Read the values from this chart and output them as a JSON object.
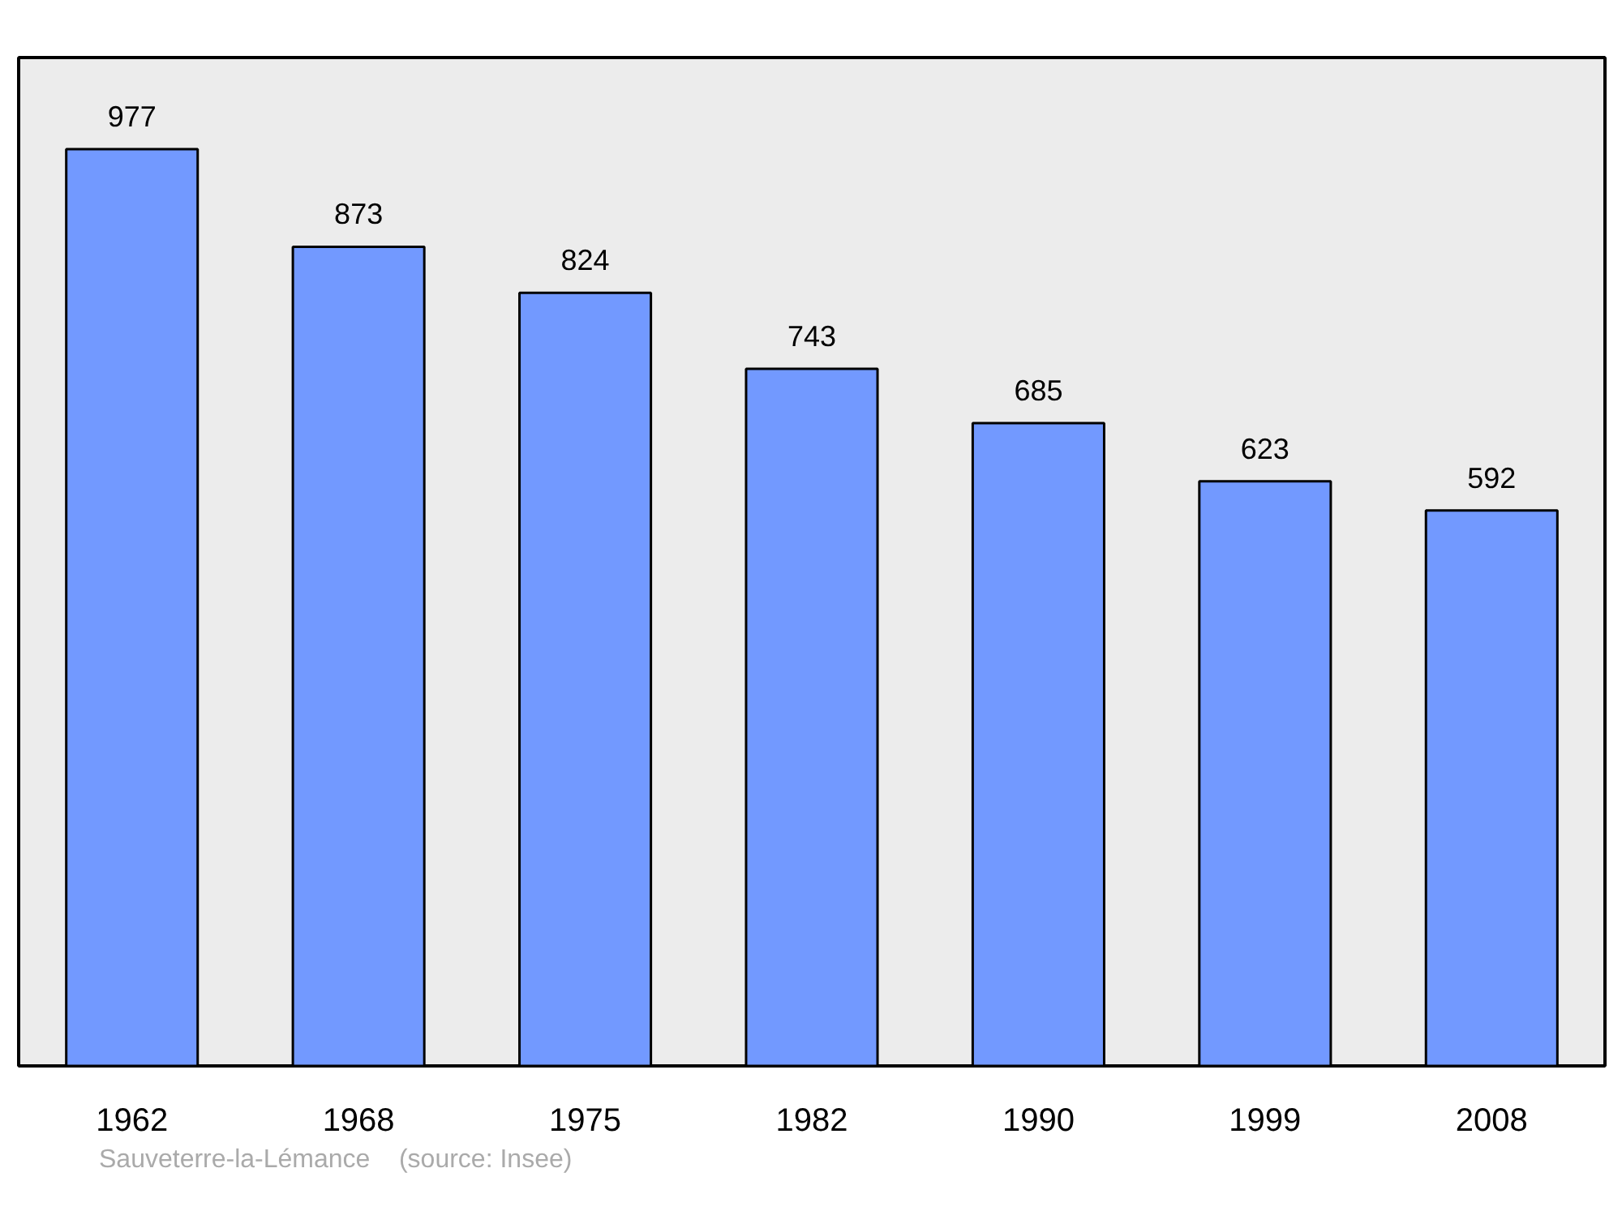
{
  "chart_data": {
    "type": "bar",
    "categories": [
      "1962",
      "1968",
      "1975",
      "1982",
      "1990",
      "1999",
      "2008"
    ],
    "values": [
      977,
      873,
      824,
      743,
      685,
      623,
      592
    ],
    "color": "#7299ff",
    "data_labels": true,
    "tick_labels": "x",
    "annotations": [
      "Sauveterre-la-Lémance",
      "(source: Insee)"
    ]
  }
}
